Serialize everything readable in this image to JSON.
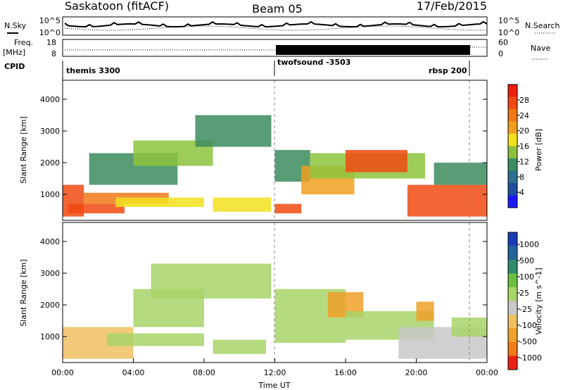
{
  "header": {
    "station": "Saskatoon (fitACF)",
    "beam": "Beam 05",
    "date": "17/Feb/2015"
  },
  "noise_panel": {
    "left_label": "N.Sky",
    "right_label": "N.Search",
    "left_ticks": [
      "10^5",
      "10^0"
    ],
    "right_ticks": [
      "10^5",
      "10^0"
    ]
  },
  "freq_panel": {
    "left_label_line1": "Freq.",
    "left_label_line2": "[MHz]",
    "right_label": "Nave",
    "left_ticks": [
      "18",
      "8"
    ],
    "right_ticks": [
      "60",
      "0"
    ]
  },
  "cpid_panel": {
    "label": "CPID",
    "modes": [
      {
        "name": "themis 3300",
        "start_hour": 0
      },
      {
        "name": "twofsound -3503",
        "start_hour": 12
      },
      {
        "name": "rbsp 200",
        "start_hour": 23
      }
    ]
  },
  "colors": {
    "power_scale": [
      "#1a1aff",
      "#1e4fa0",
      "#2e6e8e",
      "#3c8c5e",
      "#8cc33c",
      "#f2e01e",
      "#f0a01e",
      "#f07818",
      "#f04a12",
      "#ee1e0e"
    ],
    "velocity_scale": [
      "#1a3cb4",
      "#22649c",
      "#2e8c6e",
      "#6cc040",
      "#a8d468",
      "#c8c8c8",
      "#f0c060",
      "#f0a028",
      "#f07c18",
      "#ec2014"
    ]
  },
  "chart_data": [
    {
      "type": "heatmap",
      "name": "power",
      "ylabel": "Slant Range [km]",
      "xlim": [
        0,
        24
      ],
      "ylim": [
        180,
        4600
      ],
      "yticks": [
        1000,
        2000,
        3000,
        4000
      ],
      "colorbar": {
        "label": "Power [dB]",
        "ticks": [
          4,
          8,
          12,
          16,
          20,
          24,
          28
        ],
        "range": [
          0,
          32
        ]
      },
      "bands": [
        {
          "t": [
            0.0,
            1.2
          ],
          "r": [
            300,
            1300
          ],
          "v": 28
        },
        {
          "t": [
            0.3,
            3.5
          ],
          "r": [
            400,
            700
          ],
          "v": 27
        },
        {
          "t": [
            1.2,
            6.0
          ],
          "r": [
            700,
            1050
          ],
          "v": 24
        },
        {
          "t": [
            3.0,
            8.0
          ],
          "r": [
            600,
            900
          ],
          "v": 18
        },
        {
          "t": [
            1.5,
            6.5
          ],
          "r": [
            1300,
            2300
          ],
          "v": 11
        },
        {
          "t": [
            4.0,
            8.5
          ],
          "r": [
            1900,
            2700
          ],
          "v": 13
        },
        {
          "t": [
            7.5,
            11.8
          ],
          "r": [
            2500,
            3500
          ],
          "v": 12
        },
        {
          "t": [
            8.5,
            11.8
          ],
          "r": [
            450,
            900
          ],
          "v": 16
        },
        {
          "t": [
            12.0,
            13.5
          ],
          "r": [
            400,
            700
          ],
          "v": 26
        },
        {
          "t": [
            12.0,
            14.0
          ],
          "r": [
            1400,
            2400
          ],
          "v": 10
        },
        {
          "t": [
            13.5,
            16.5
          ],
          "r": [
            1000,
            1900
          ],
          "v": 20
        },
        {
          "t": [
            14.0,
            20.5
          ],
          "r": [
            1500,
            2300
          ],
          "v": 14
        },
        {
          "t": [
            16.0,
            19.5
          ],
          "r": [
            1700,
            2400
          ],
          "v": 26
        },
        {
          "t": [
            19.5,
            24.0
          ],
          "r": [
            300,
            1300
          ],
          "v": 27
        },
        {
          "t": [
            21.0,
            24.0
          ],
          "r": [
            1300,
            2000
          ],
          "v": 12
        }
      ]
    },
    {
      "type": "heatmap",
      "name": "velocity",
      "ylabel": "Slant Range [km]",
      "xlabel": "Time UT",
      "xlim": [
        0,
        24
      ],
      "ylim": [
        180,
        4600
      ],
      "yticks": [
        1000,
        2000,
        3000,
        4000
      ],
      "xticks": [
        "00:00",
        "04:00",
        "08:00",
        "12:00",
        "16:00",
        "20:00",
        "00:00"
      ],
      "colorbar": {
        "label": "Velocity [m s^-1]",
        "ticks": [
          "1000",
          "500",
          "100",
          "25",
          "-25",
          "-100",
          "-500",
          "-1000"
        ],
        "range": [
          -1200,
          1200
        ]
      },
      "bands": [
        {
          "t": [
            0.0,
            4.0
          ],
          "r": [
            300,
            1300
          ],
          "v": -300
        },
        {
          "t": [
            2.5,
            8.0
          ],
          "r": [
            700,
            1100
          ],
          "v": 0
        },
        {
          "t": [
            4.0,
            8.0
          ],
          "r": [
            1300,
            2500
          ],
          "v": 0
        },
        {
          "t": [
            5.0,
            11.8
          ],
          "r": [
            2200,
            3300
          ],
          "v": 0
        },
        {
          "t": [
            8.5,
            11.5
          ],
          "r": [
            450,
            900
          ],
          "v": 150
        },
        {
          "t": [
            12.0,
            16.0
          ],
          "r": [
            800,
            2500
          ],
          "v": 0
        },
        {
          "t": [
            15.0,
            17.0
          ],
          "r": [
            1600,
            2400
          ],
          "v": -700
        },
        {
          "t": [
            16.0,
            21.0
          ],
          "r": [
            900,
            1800
          ],
          "v": 0
        },
        {
          "t": [
            19.0,
            24.0
          ],
          "r": [
            300,
            1300
          ],
          "v": -200
        },
        {
          "t": [
            20.0,
            21.0
          ],
          "r": [
            1500,
            2100
          ],
          "v": -600
        },
        {
          "t": [
            22.0,
            24.0
          ],
          "r": [
            1000,
            1600
          ],
          "v": 0
        }
      ]
    }
  ]
}
